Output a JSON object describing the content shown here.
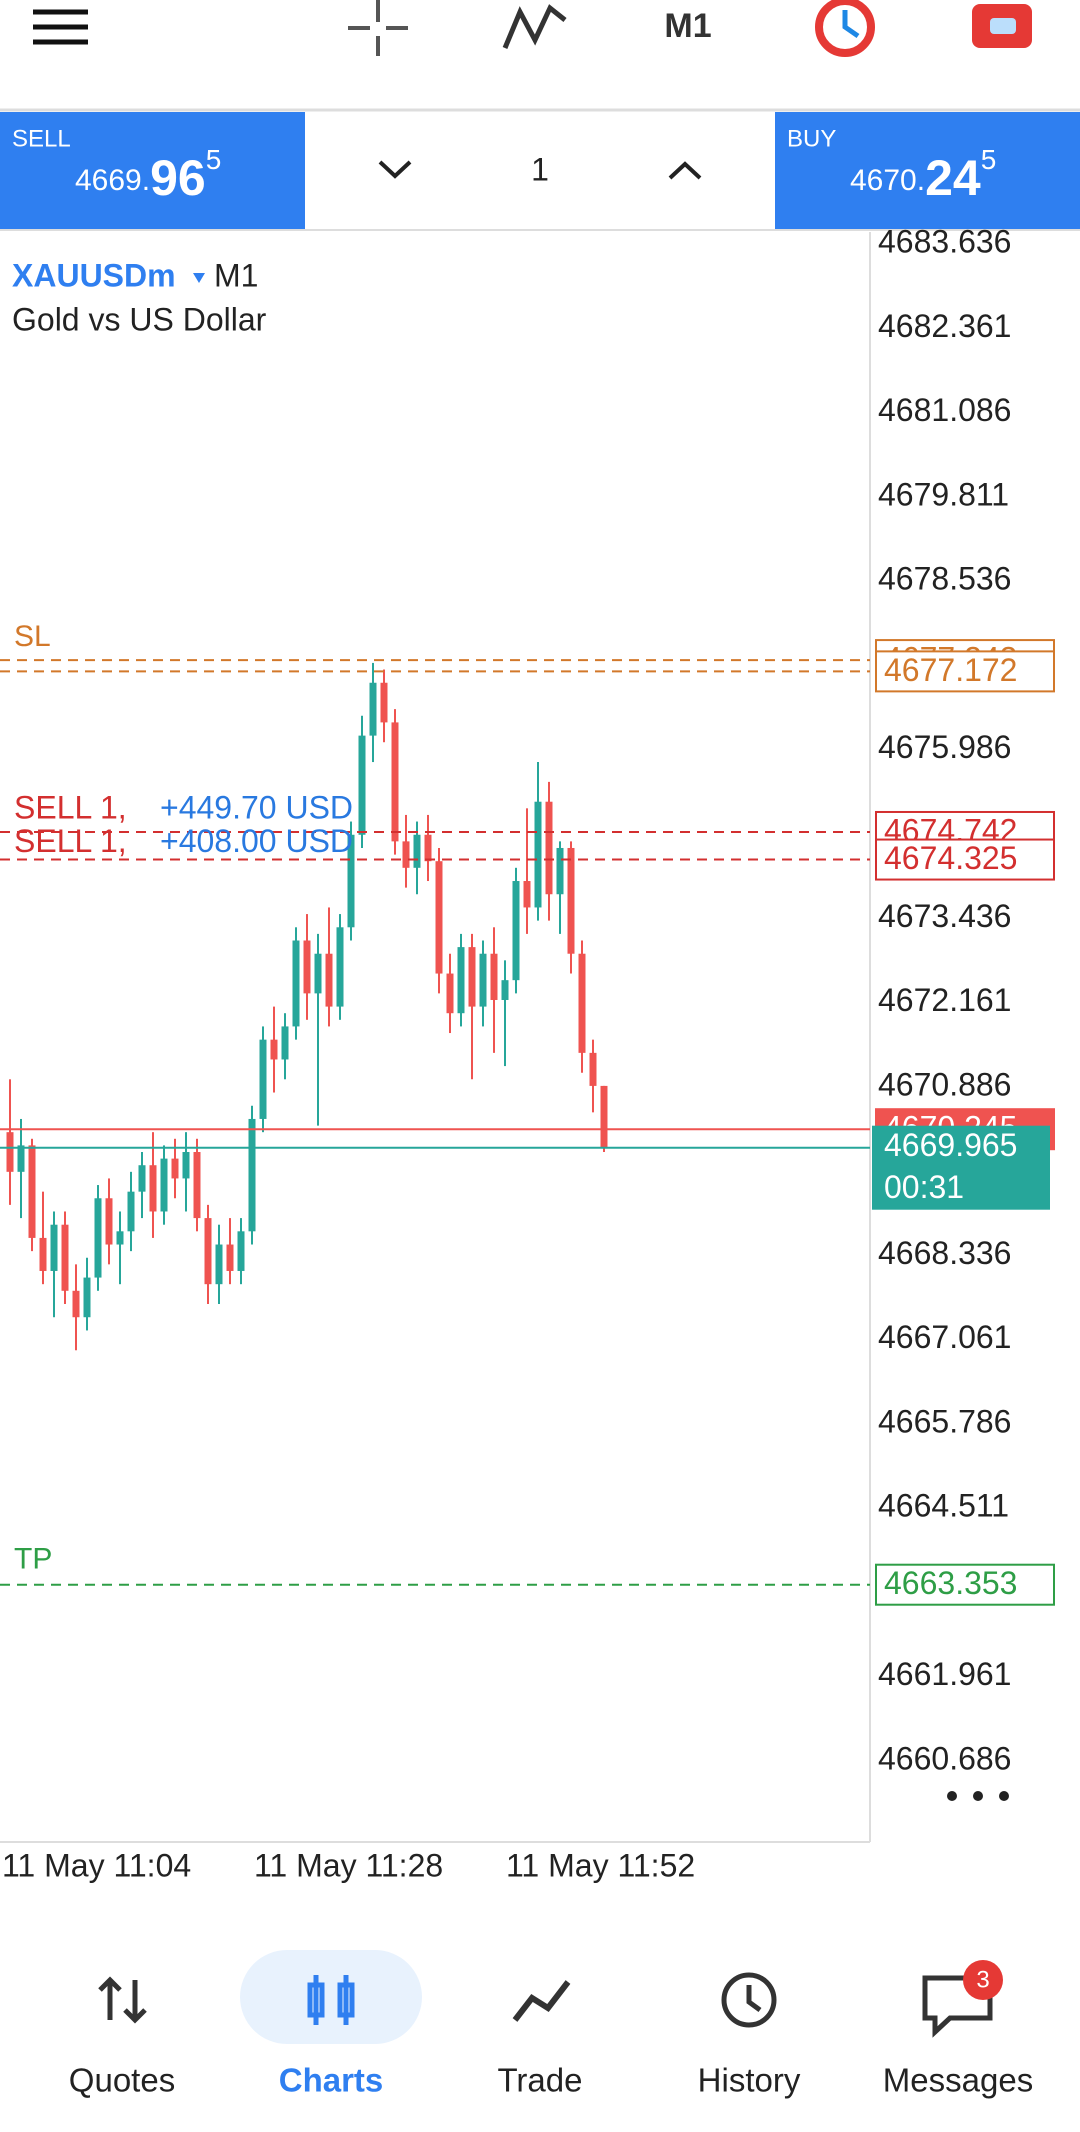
{
  "top_bar": {
    "timeframe": "M1"
  },
  "trade_panel": {
    "sell": {
      "label": "SELL",
      "price_main": "4669.",
      "price_big": "96",
      "price_sup": "5"
    },
    "buy": {
      "label": "BUY",
      "price_main": "4670.",
      "price_big": "24",
      "price_sup": "5"
    },
    "volume": "1"
  },
  "chart_data": {
    "type": "candlestick",
    "symbol": "XAUUSDm",
    "timeframe": "M1",
    "description": "Gold vs US Dollar",
    "up_color": "#26a69a",
    "down_color": "#ef5350",
    "open": [
      4670.2,
      4669.6,
      4670.0,
      4668.6,
      4668.1,
      4668.8,
      4667.8,
      4667.4,
      4668.0,
      4669.2,
      4668.5,
      4668.7,
      4669.3,
      4669.7,
      4669.0,
      4669.8,
      4669.5,
      4669.9,
      4668.9,
      4667.9,
      4668.5,
      4668.1,
      4668.7,
      4670.4,
      4671.6,
      4671.3,
      4671.8,
      4673.1,
      4672.3,
      4672.9,
      4672.1,
      4673.3,
      4674.7,
      4676.2,
      4677.0,
      4676.4,
      4674.6,
      4674.2,
      4674.7,
      4674.3,
      4672.6,
      4672.0,
      4673.0,
      4672.1,
      4672.9,
      4672.2,
      4672.5,
      4674.0,
      4673.6,
      4675.2,
      4673.8,
      4674.5,
      4672.9,
      4671.4,
      4670.9
    ],
    "high": [
      4671.0,
      4670.4,
      4670.1,
      4669.3,
      4669.0,
      4669.0,
      4668.2,
      4668.3,
      4669.4,
      4669.5,
      4669.0,
      4669.6,
      4669.9,
      4670.2,
      4670.0,
      4670.1,
      4670.2,
      4670.1,
      4669.1,
      4668.8,
      4668.9,
      4668.9,
      4670.6,
      4671.8,
      4672.1,
      4672.0,
      4673.3,
      4673.5,
      4673.2,
      4673.6,
      4673.5,
      4674.9,
      4676.5,
      4677.3,
      4677.2,
      4676.6,
      4675.0,
      4674.9,
      4675.0,
      4674.5,
      4672.9,
      4673.2,
      4673.2,
      4673.1,
      4673.3,
      4672.8,
      4674.2,
      4675.1,
      4675.8,
      4675.5,
      4674.6,
      4674.6,
      4673.1,
      4671.6,
      4670.9
    ],
    "low": [
      4669.1,
      4668.9,
      4668.4,
      4667.9,
      4667.4,
      4667.6,
      4666.9,
      4667.2,
      4667.8,
      4668.2,
      4667.9,
      4668.4,
      4668.9,
      4668.6,
      4668.8,
      4669.2,
      4669.0,
      4668.7,
      4667.6,
      4667.6,
      4667.9,
      4667.9,
      4668.5,
      4670.2,
      4670.8,
      4671.0,
      4671.6,
      4671.9,
      4670.3,
      4671.8,
      4671.9,
      4673.1,
      4674.5,
      4675.8,
      4676.1,
      4674.4,
      4673.9,
      4673.8,
      4674.0,
      4672.3,
      4671.7,
      4671.8,
      4671.0,
      4671.8,
      4671.4,
      4671.2,
      4672.3,
      4673.2,
      4673.4,
      4673.4,
      4673.2,
      4672.6,
      4671.1,
      4670.5,
      4669.9
    ],
    "close": [
      4669.6,
      4670.0,
      4668.6,
      4668.1,
      4668.8,
      4667.8,
      4667.4,
      4668.0,
      4669.2,
      4668.5,
      4668.7,
      4669.3,
      4669.7,
      4669.0,
      4669.8,
      4669.5,
      4669.9,
      4668.9,
      4667.9,
      4668.5,
      4668.1,
      4668.7,
      4670.4,
      4671.6,
      4671.3,
      4671.8,
      4673.1,
      4672.3,
      4672.9,
      4672.1,
      4673.3,
      4674.7,
      4676.2,
      4677.0,
      4676.4,
      4674.6,
      4674.2,
      4674.7,
      4674.3,
      4672.6,
      4672.0,
      4673.0,
      4672.1,
      4672.9,
      4672.2,
      4672.5,
      4674.0,
      4673.6,
      4675.2,
      4673.8,
      4674.5,
      4672.9,
      4671.4,
      4670.9,
      4669.965
    ],
    "ylim": [
      4659.46,
      4683.82
    ],
    "yticks": [
      4683.636,
      4682.361,
      4681.086,
      4679.811,
      4678.536,
      4675.986,
      4673.436,
      4672.161,
      4670.886,
      4668.336,
      4667.061,
      4665.786,
      4664.511,
      4661.961,
      4660.686
    ],
    "x_labels": [
      "11 May 11:04",
      "11 May 11:28",
      "11 May 11:52"
    ],
    "stop_loss": {
      "text": "SL",
      "values": [
        4677.343,
        4677.172
      ],
      "color": "#d2782a"
    },
    "positions": {
      "color": "#d32f2f",
      "profit_color": "#2979e0",
      "items": [
        {
          "text": "SELL 1,",
          "profit": "+449.70 USD",
          "value": 4674.742
        },
        {
          "text": "SELL 1,",
          "profit": "+408.00 USD",
          "value": 4674.325
        }
      ]
    },
    "take_profit": {
      "text": "TP",
      "value": 4663.353,
      "color": "#2e9e46"
    },
    "ask": 4670.245,
    "bid": 4669.965,
    "bar_timer": "00:31"
  },
  "nav": {
    "items": [
      "Quotes",
      "Charts",
      "Trade",
      "History",
      "Messages"
    ],
    "active": "Charts",
    "badge": "3"
  }
}
